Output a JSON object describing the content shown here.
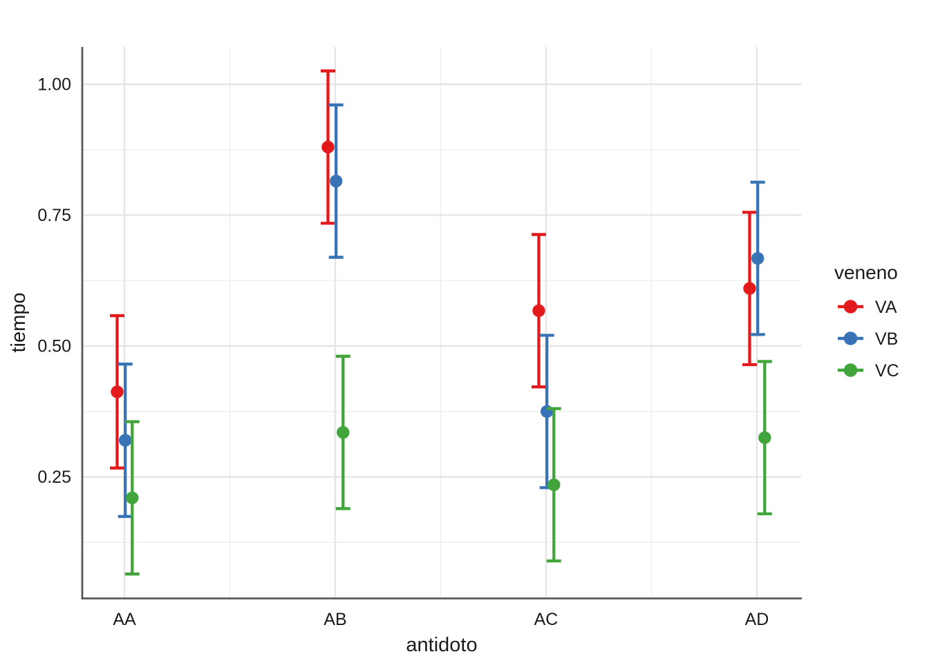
{
  "chart_data": {
    "type": "pointrange",
    "title": "",
    "xlabel": "antidoto",
    "ylabel": "tiempo",
    "legend_title": "veneno",
    "legend_position": "right",
    "grid": "major and minor, light gray on white",
    "categories": [
      "AA",
      "AB",
      "AC",
      "AD"
    ],
    "yticks": [
      0.25,
      0.5,
      0.75,
      1.0
    ],
    "ytick_labels": [
      "0.25",
      "0.50",
      "0.75",
      "1.00"
    ],
    "ylim": [
      0.02,
      1.07
    ],
    "error_bar_halfwidth": 0.1455,
    "series": [
      {
        "name": "VA",
        "color": "#e31a1c",
        "values": [
          0.4125,
          0.88,
          0.5675,
          0.61
        ],
        "ci_low": [
          0.267,
          0.7345,
          0.422,
          0.4645
        ],
        "ci_high": [
          0.558,
          1.0255,
          0.713,
          0.7555
        ]
      },
      {
        "name": "VB",
        "color": "#3874b5",
        "values": [
          0.32,
          0.815,
          0.375,
          0.6675
        ],
        "ci_low": [
          0.1745,
          0.6695,
          0.2295,
          0.522
        ],
        "ci_high": [
          0.4655,
          0.9605,
          0.5205,
          0.813
        ]
      },
      {
        "name": "VC",
        "color": "#41a53c",
        "values": [
          0.21,
          0.335,
          0.235,
          0.325
        ],
        "ci_low": [
          0.0645,
          0.1895,
          0.0895,
          0.1795
        ],
        "ci_high": [
          0.3555,
          0.4805,
          0.3805,
          0.4705
        ]
      }
    ],
    "colors": {
      "axis_line": "#58585a",
      "grid_major": "#e5e5e5",
      "grid_minor": "#efefef",
      "text": "#1a1a1a"
    }
  }
}
